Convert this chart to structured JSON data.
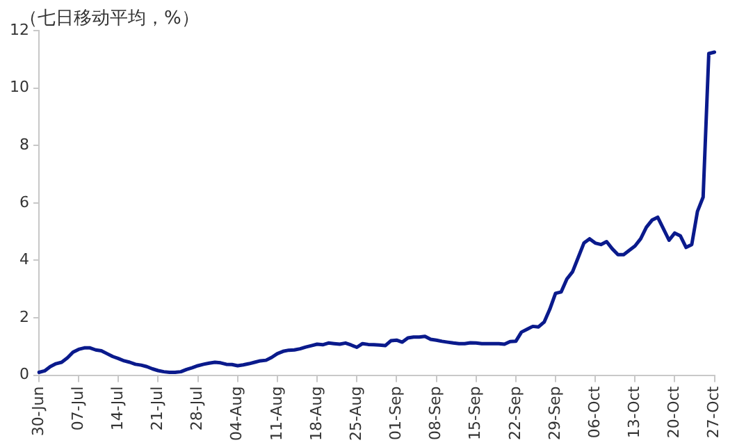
{
  "chart_data": {
    "type": "line",
    "title": "（七日移动平均，%）",
    "categories": [
      "30-Jun",
      null,
      null,
      null,
      null,
      null,
      null,
      "07-Jul",
      null,
      null,
      null,
      null,
      null,
      null,
      "14-Jul",
      null,
      null,
      null,
      null,
      null,
      null,
      "21-Jul",
      null,
      null,
      null,
      null,
      null,
      null,
      "28-Jul",
      null,
      null,
      null,
      null,
      null,
      null,
      "04-Aug",
      null,
      null,
      null,
      null,
      null,
      null,
      "11-Aug",
      null,
      null,
      null,
      null,
      null,
      null,
      "18-Aug",
      null,
      null,
      null,
      null,
      null,
      null,
      "25-Aug",
      null,
      null,
      null,
      null,
      null,
      null,
      "01-Sep",
      null,
      null,
      null,
      null,
      null,
      null,
      "08-Sep",
      null,
      null,
      null,
      null,
      null,
      null,
      "15-Sep",
      null,
      null,
      null,
      null,
      null,
      null,
      "22-Sep",
      null,
      null,
      null,
      null,
      null,
      null,
      "29-Sep",
      null,
      null,
      null,
      null,
      null,
      null,
      "06-Oct",
      null,
      null,
      null,
      null,
      null,
      null,
      "13-Oct",
      null,
      null,
      null,
      null,
      null,
      null,
      "20-Oct",
      null,
      null,
      null,
      null,
      null,
      null,
      "27-Oct"
    ],
    "series": [
      {
        "color": "#0a1a8c",
        "values": [
          0.1,
          0.15,
          0.3,
          0.4,
          0.45,
          0.6,
          0.8,
          0.9,
          0.95,
          0.95,
          0.88,
          0.85,
          0.75,
          0.65,
          0.58,
          0.5,
          0.45,
          0.38,
          0.35,
          0.3,
          0.22,
          0.16,
          0.12,
          0.1,
          0.1,
          0.12,
          0.2,
          0.26,
          0.33,
          0.38,
          0.42,
          0.45,
          0.43,
          0.38,
          0.37,
          0.33,
          0.36,
          0.4,
          0.45,
          0.5,
          0.52,
          0.62,
          0.75,
          0.83,
          0.87,
          0.88,
          0.92,
          0.98,
          1.03,
          1.08,
          1.06,
          1.12,
          1.1,
          1.08,
          1.12,
          1.05,
          0.97,
          1.1,
          1.07,
          1.06,
          1.05,
          1.03,
          1.2,
          1.22,
          1.15,
          1.3,
          1.33,
          1.33,
          1.35,
          1.25,
          1.22,
          1.18,
          1.15,
          1.12,
          1.1,
          1.1,
          1.13,
          1.12,
          1.1,
          1.1,
          1.1,
          1.1,
          1.08,
          1.17,
          1.18,
          1.5,
          1.6,
          1.7,
          1.68,
          1.85,
          2.3,
          2.85,
          2.9,
          3.35,
          3.6,
          4.1,
          4.6,
          4.75,
          4.6,
          4.55,
          4.65,
          4.4,
          4.2,
          4.2,
          4.35,
          4.5,
          4.75,
          5.15,
          5.4,
          5.5,
          5.1,
          4.7,
          4.95,
          4.85,
          4.45,
          4.55,
          5.7,
          6.2,
          11.2,
          11.25
        ]
      }
    ],
    "ylim": [
      0,
      12
    ],
    "yticks": [
      0,
      2,
      4,
      6,
      8,
      10,
      12
    ],
    "marker": "none",
    "line_style": "solid",
    "legend": false
  }
}
